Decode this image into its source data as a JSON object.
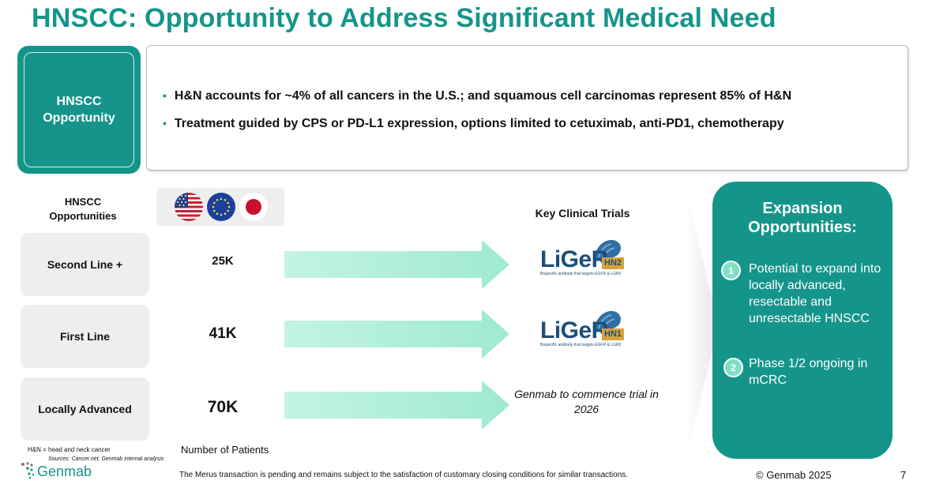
{
  "slide": {
    "title": "HNSCC: Opportunity to Address Significant Medical Need",
    "opportunity_label": "HNSCC Opportunity",
    "bullets": [
      "H&N accounts for ~4% of all cancers in the U.S.; and squamous cell carcinomas represent 85% of H&N",
      "Treatment guided by CPS or PD-L1 expression, options limited to cetuximab, anti-PD1, chemotherapy"
    ],
    "column_header": "HNSCC Opportunities",
    "flag_icons": [
      "us-flag-icon",
      "eu-flag-icon",
      "japan-flag-icon"
    ],
    "lines": [
      {
        "label": "Second Line +",
        "patients": "25K"
      },
      {
        "label": "First Line",
        "patients": "41K"
      },
      {
        "label": "Locally Advanced",
        "patients": "70K"
      }
    ],
    "trials_header": "Key Clinical Trials",
    "trials": [
      {
        "logo_word": "LiGeR",
        "badge": "HN2",
        "tagline": "Bispecific antibody that targets EGFR & LGR5"
      },
      {
        "logo_word": "LiGeR",
        "badge": "HN1",
        "tagline": "Bispecific antibody that targets EGFR & LGR5"
      },
      {
        "text": "Genmab to commence trial in 2026"
      }
    ],
    "expansion": {
      "title": "Expansion Opportunities:",
      "items": [
        {
          "num": "1",
          "text": "Potential to expand into locally advanced, resectable and unresectable HNSCC"
        },
        {
          "num": "2",
          "text": "Phase 1/2 ongoing in mCRC"
        }
      ]
    },
    "footnote_abbr": "H&N = head and neck cancer",
    "sources": "Sources: Cancer.net, Genmab internal analysis",
    "patients_caption": "Number of Patients",
    "logo_text": "Genmab",
    "disclaimer": "The Merus transaction is pending and remains subject to the satisfaction of customary closing conditions for similar transactions.",
    "copyright": "© Genmab 2025",
    "page_number": "7",
    "colors": {
      "brand_teal": "#15958a",
      "arrow_mint": "#b5f0dc",
      "liger_blue": "#1f4e7a",
      "liger_gold": "#d6a23c"
    }
  }
}
